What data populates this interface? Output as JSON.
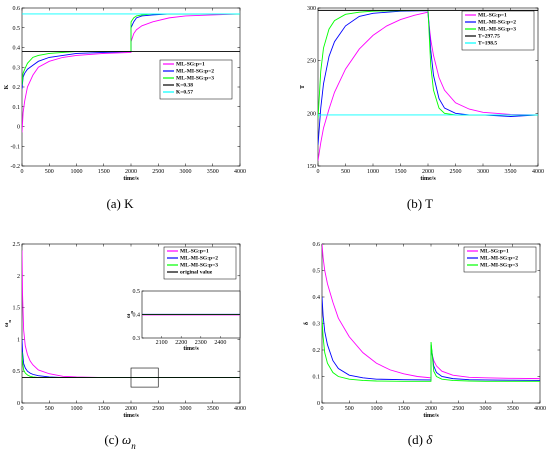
{
  "figure": {
    "background": "#ffffff"
  },
  "colors": {
    "p1": "#ff00ff",
    "p2": "#0000ff",
    "p3": "#00ff00",
    "ref_black": "#000000",
    "ref_cyan": "#00ffff"
  },
  "chart_data": [
    {
      "id": "K",
      "type": "line",
      "caption_label": "(a)",
      "caption_text": "K",
      "caption_italic": false,
      "xlabel": "time/s",
      "ylabel": "K",
      "xlim": [
        0,
        4000
      ],
      "ylim": [
        -0.2,
        0.6
      ],
      "xticks": [
        0,
        500,
        1000,
        1500,
        2000,
        2500,
        3000,
        3500,
        4000
      ],
      "yticks": [
        -0.2,
        -0.1,
        0,
        0.1,
        0.2,
        0.3,
        0.4,
        0.5,
        0.6
      ],
      "legend_position": "center-right",
      "series": [
        {
          "name": "ML-SG:p=1",
          "color": "#ff00ff",
          "x": [
            0,
            20,
            50,
            100,
            200,
            300,
            500,
            750,
            1000,
            1500,
            1999,
            2001,
            2050,
            2100,
            2200,
            2400,
            2700,
            3000,
            3500,
            4000
          ],
          "y": [
            -0.03,
            0.07,
            0.13,
            0.2,
            0.26,
            0.3,
            0.33,
            0.35,
            0.36,
            0.37,
            0.375,
            0.43,
            0.47,
            0.49,
            0.51,
            0.53,
            0.55,
            0.56,
            0.565,
            0.57
          ]
        },
        {
          "name": "ML-MI-SG:p=2",
          "color": "#0000ff",
          "x": [
            0,
            20,
            50,
            100,
            200,
            300,
            500,
            750,
            1000,
            1500,
            1999,
            2001,
            2050,
            2100,
            2200,
            2400,
            2700,
            3000,
            3500,
            4000
          ],
          "y": [
            0.19,
            0.25,
            0.27,
            0.29,
            0.31,
            0.33,
            0.35,
            0.36,
            0.37,
            0.375,
            0.38,
            0.5,
            0.53,
            0.55,
            0.56,
            0.565,
            0.57,
            0.57,
            0.57,
            0.57
          ]
        },
        {
          "name": "ML-MI-SG:p=3",
          "color": "#00ff00",
          "x": [
            0,
            20,
            50,
            100,
            200,
            300,
            500,
            750,
            1000,
            1500,
            1999,
            2001,
            2050,
            2100,
            2200,
            2400,
            2700,
            3000,
            3500,
            4000
          ],
          "y": [
            0.21,
            0.27,
            0.29,
            0.32,
            0.35,
            0.36,
            0.37,
            0.375,
            0.38,
            0.38,
            0.38,
            0.53,
            0.55,
            0.56,
            0.565,
            0.57,
            0.57,
            0.57,
            0.57,
            0.57
          ]
        },
        {
          "name": "K=0.38",
          "color": "#000000",
          "x": [
            0,
            4000
          ],
          "y": [
            0.38,
            0.38
          ]
        },
        {
          "name": "K=0.57",
          "color": "#00ffff",
          "x": [
            0,
            4000
          ],
          "y": [
            0.57,
            0.57
          ]
        }
      ]
    },
    {
      "id": "T",
      "type": "line",
      "caption_label": "(b)",
      "caption_text": "T",
      "caption_italic": false,
      "xlabel": "time/s",
      "ylabel": "T",
      "xlim": [
        0,
        4000
      ],
      "ylim": [
        150,
        300
      ],
      "xticks": [
        0,
        500,
        1000,
        1500,
        2000,
        2500,
        3000,
        3500,
        4000
      ],
      "yticks": [
        150,
        200,
        250,
        300
      ],
      "legend_position": "top-right",
      "series": [
        {
          "name": "ML-SG:p=1",
          "color": "#ff00ff",
          "x": [
            0,
            50,
            100,
            200,
            300,
            500,
            750,
            1000,
            1250,
            1500,
            1750,
            1999,
            2001,
            2050,
            2100,
            2200,
            2300,
            2500,
            2750,
            3000,
            3500,
            4000
          ],
          "y": [
            155,
            172,
            186,
            204,
            220,
            242,
            261,
            274,
            283,
            289,
            293,
            296,
            293,
            270,
            255,
            234,
            222,
            210,
            204,
            201,
            199,
            198.5
          ]
        },
        {
          "name": "ML-MI-SG:p=2",
          "color": "#0000ff",
          "x": [
            0,
            50,
            100,
            200,
            300,
            500,
            750,
            1000,
            1500,
            1999,
            2001,
            2050,
            2100,
            2200,
            2300,
            2500,
            2750,
            3000,
            3500,
            4000
          ],
          "y": [
            170,
            205,
            228,
            254,
            268,
            283,
            292,
            295,
            297,
            297.5,
            297,
            260,
            236,
            214,
            205,
            200,
            198.5,
            198.5,
            197,
            198.5
          ]
        },
        {
          "name": "ML-MI-SG:p=3",
          "color": "#00ff00",
          "x": [
            0,
            50,
            100,
            200,
            300,
            500,
            750,
            1000,
            1500,
            1999,
            2001,
            2050,
            2100,
            2200,
            2300,
            2500,
            2750,
            3000,
            3500,
            4000
          ],
          "y": [
            195,
            240,
            262,
            280,
            288,
            294,
            296,
            297,
            297.5,
            297.7,
            297,
            245,
            222,
            205,
            200,
            198.5,
            198.5,
            198.5,
            198.5,
            198.5
          ]
        },
        {
          "name": "T=297.75",
          "color": "#000000",
          "x": [
            0,
            4000
          ],
          "y": [
            297.75,
            297.75
          ]
        },
        {
          "name": "T=198.5",
          "color": "#00ffff",
          "x": [
            0,
            4000
          ],
          "y": [
            198.5,
            198.5
          ]
        }
      ]
    },
    {
      "id": "omega",
      "type": "line",
      "caption_label": "(c)",
      "caption_text": "ω",
      "caption_sub": "n",
      "caption_italic": true,
      "xlabel": "time/s",
      "ylabel": "ω",
      "ylabel_sub": "n",
      "xlim": [
        0,
        4000
      ],
      "ylim": [
        0,
        2.5
      ],
      "xticks": [
        0,
        500,
        1000,
        1500,
        2000,
        2500,
        3000,
        3500,
        4000
      ],
      "yticks": [
        0,
        0.5,
        1,
        1.5,
        2,
        2.5
      ],
      "legend_position": "top-right",
      "series": [
        {
          "name": "ML-SG:p=1",
          "color": "#ff00ff",
          "x": [
            0,
            10,
            30,
            60,
            100,
            150,
            200,
            300,
            500,
            750,
            1000,
            1500,
            2000,
            2500,
            3000,
            3500,
            4000
          ],
          "y": [
            2.4,
            1.7,
            1.15,
            0.9,
            0.76,
            0.66,
            0.6,
            0.52,
            0.46,
            0.42,
            0.41,
            0.4,
            0.4,
            0.4,
            0.4,
            0.4,
            0.4
          ]
        },
        {
          "name": "ML-MI-SG:p=2",
          "color": "#0000ff",
          "x": [
            0,
            10,
            30,
            60,
            100,
            150,
            200,
            300,
            500,
            750,
            1000,
            1500,
            2000,
            2500,
            3000,
            3500,
            4000
          ],
          "y": [
            1.0,
            0.8,
            0.62,
            0.55,
            0.5,
            0.47,
            0.45,
            0.43,
            0.41,
            0.4,
            0.4,
            0.4,
            0.4,
            0.4,
            0.4,
            0.4,
            0.4
          ]
        },
        {
          "name": "ML-MI-SG:p=3",
          "color": "#00ff00",
          "x": [
            0,
            10,
            30,
            60,
            100,
            150,
            200,
            300,
            500,
            750,
            1000,
            1500,
            2000,
            2500,
            3000,
            3500,
            4000
          ],
          "y": [
            0.8,
            0.65,
            0.52,
            0.47,
            0.44,
            0.42,
            0.41,
            0.4,
            0.4,
            0.4,
            0.4,
            0.4,
            0.4,
            0.4,
            0.4,
            0.4,
            0.4
          ]
        },
        {
          "name": "original value",
          "color": "#000000",
          "x": [
            0,
            4000
          ],
          "y": [
            0.4,
            0.4
          ]
        }
      ],
      "inset": {
        "xlabel": "time/s",
        "ylabel": "ω",
        "ylabel_sub": "n",
        "xlim": [
          2000,
          2500
        ],
        "ylim": [
          0.3,
          0.5
        ],
        "xticks": [
          2100,
          2200,
          2300,
          2400
        ],
        "yticks": [
          0.3,
          0.4,
          0.5
        ],
        "zoom_box": {
          "xlim": [
            2000,
            2500
          ],
          "ylim": [
            0.25,
            0.55
          ]
        },
        "series": [
          {
            "color": "#ff00ff",
            "x": [
              2000,
              2500
            ],
            "y": [
              0.398,
              0.398
            ]
          },
          {
            "color": "#0000ff",
            "x": [
              2000,
              2500
            ],
            "y": [
              0.401,
              0.401
            ]
          },
          {
            "color": "#00ff00",
            "x": [
              2000,
              2500
            ],
            "y": [
              0.4,
              0.4
            ]
          },
          {
            "color": "#000000",
            "x": [
              2000,
              2500
            ],
            "y": [
              0.4,
              0.4
            ]
          }
        ]
      }
    },
    {
      "id": "delta",
      "type": "line",
      "caption_label": "(d)",
      "caption_text": "δ",
      "caption_italic": true,
      "xlabel": "time/s",
      "ylabel": "δ",
      "xlim": [
        0,
        4000
      ],
      "ylim": [
        0,
        0.6
      ],
      "xticks": [
        0,
        500,
        1000,
        1500,
        2000,
        2500,
        3000,
        3500,
        4000
      ],
      "yticks": [
        0,
        0.1,
        0.2,
        0.3,
        0.4,
        0.5,
        0.6
      ],
      "legend_position": "top-right",
      "series": [
        {
          "name": "ML-SG:p=1",
          "color": "#ff00ff",
          "x": [
            0,
            20,
            50,
            100,
            200,
            300,
            500,
            750,
            1000,
            1250,
            1500,
            1750,
            1999,
            2001,
            2050,
            2100,
            2200,
            2400,
            2700,
            3000,
            3500,
            4000
          ],
          "y": [
            0.6,
            0.55,
            0.5,
            0.45,
            0.38,
            0.32,
            0.25,
            0.19,
            0.15,
            0.125,
            0.11,
            0.1,
            0.095,
            0.2,
            0.16,
            0.14,
            0.12,
            0.105,
            0.097,
            0.095,
            0.093,
            0.092
          ]
        },
        {
          "name": "ML-MI-SG:p=2",
          "color": "#0000ff",
          "x": [
            0,
            20,
            50,
            100,
            200,
            300,
            500,
            750,
            1000,
            1500,
            1999,
            2001,
            2050,
            2100,
            2200,
            2400,
            2700,
            3000,
            3500,
            4000
          ],
          "y": [
            0.4,
            0.33,
            0.27,
            0.22,
            0.16,
            0.13,
            0.105,
            0.095,
            0.09,
            0.088,
            0.087,
            0.22,
            0.14,
            0.115,
            0.1,
            0.092,
            0.088,
            0.087,
            0.086,
            0.085
          ]
        },
        {
          "name": "ML-MI-SG:p=3",
          "color": "#00ff00",
          "x": [
            0,
            20,
            50,
            100,
            200,
            300,
            500,
            750,
            1000,
            1500,
            1999,
            2001,
            2050,
            2100,
            2200,
            2400,
            2700,
            3000,
            3500,
            4000
          ],
          "y": [
            0.32,
            0.25,
            0.19,
            0.15,
            0.115,
            0.1,
            0.09,
            0.085,
            0.083,
            0.082,
            0.082,
            0.23,
            0.12,
            0.1,
            0.09,
            0.085,
            0.083,
            0.082,
            0.082,
            0.082
          ]
        }
      ]
    }
  ]
}
